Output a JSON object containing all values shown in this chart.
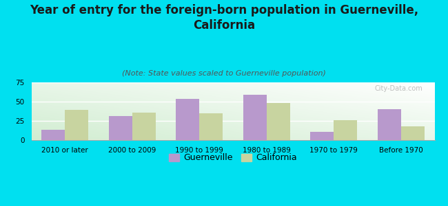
{
  "title": "Year of entry for the foreign-born population in Guerneville,\nCalifornia",
  "subtitle": "(Note: State values scaled to Guerneville population)",
  "categories": [
    "2010 or later",
    "2000 to 2009",
    "1990 to 1999",
    "1980 to 1989",
    "1970 to 1979",
    "Before 1970"
  ],
  "guerneville_values": [
    13,
    31,
    54,
    59,
    11,
    40
  ],
  "california_values": [
    39,
    36,
    35,
    48,
    26,
    18
  ],
  "guerneville_color": "#b899cc",
  "california_color": "#c8d4a0",
  "background_color": "#00e0f0",
  "ylim": [
    0,
    75
  ],
  "yticks": [
    0,
    25,
    50,
    75
  ],
  "title_fontsize": 12,
  "subtitle_fontsize": 8,
  "tick_fontsize": 7.5,
  "legend_fontsize": 9,
  "bar_width": 0.35,
  "watermark": "City-Data.com"
}
